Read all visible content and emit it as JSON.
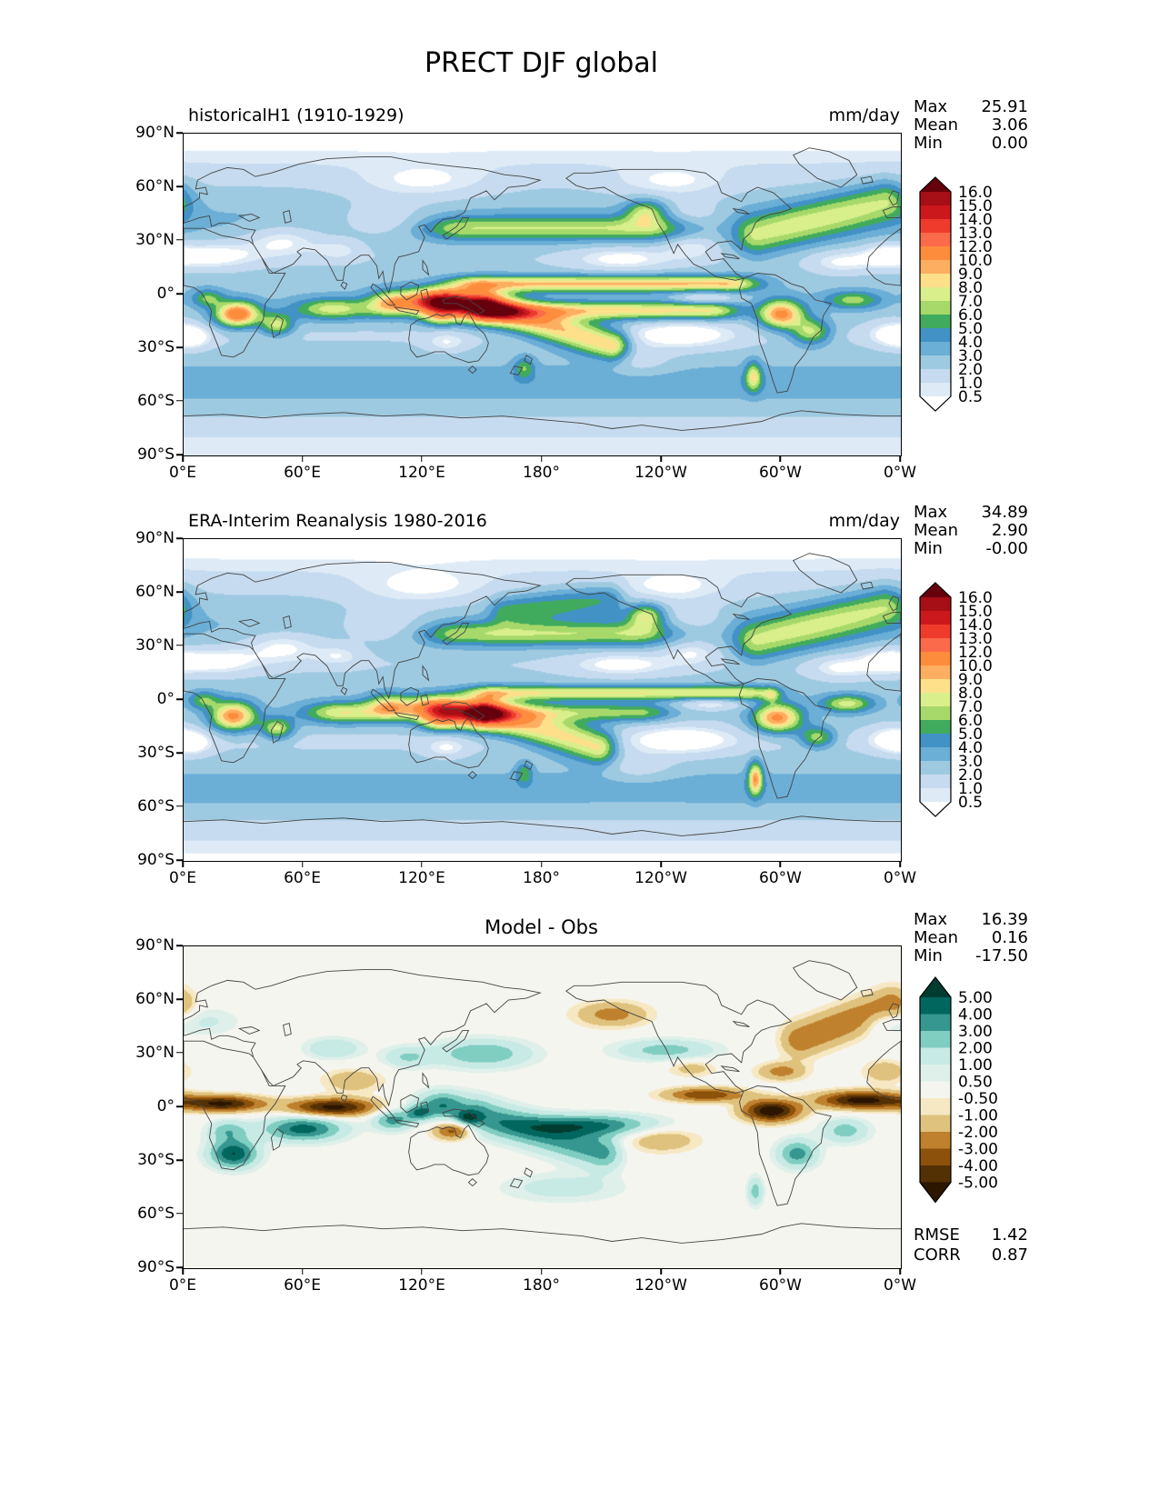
{
  "figure_title": "PRECT DJF global",
  "chart_data": [
    {
      "type": "heatmap",
      "title": "historicalH1 (1910-1929)",
      "units_label": "mm/day",
      "projection": "global lat-lon map, longitude 0°E to 360°E, latitude 90°S to 90°N",
      "stats": [
        {
          "label": "Max",
          "value": "25.91"
        },
        {
          "label": "Mean",
          "value": "3.06"
        },
        {
          "label": "Min",
          "value": "0.00"
        }
      ],
      "x_ticks": [
        "0°E",
        "60°E",
        "120°E",
        "180°",
        "120°W",
        "60°W",
        "0°W"
      ],
      "y_ticks": [
        "90°N",
        "60°N",
        "30°N",
        "0°",
        "30°S",
        "60°S",
        "90°S"
      ],
      "colorbar": {
        "tick_labels": [
          "16.0",
          "15.0",
          "14.0",
          "13.0",
          "12.0",
          "10.0",
          "9.0",
          "8.0",
          "7.0",
          "6.0",
          "5.0",
          "4.0",
          "3.0",
          "2.0",
          "1.0",
          "0.5"
        ],
        "levels_low_to_high": [
          0.5,
          1,
          2,
          3,
          4,
          5,
          6,
          7,
          8,
          9,
          10,
          12,
          13,
          14,
          15,
          16
        ],
        "colors_low_to_high": [
          "#ffffff",
          "#deebf7",
          "#c6dbef",
          "#9ecae1",
          "#6baed6",
          "#4292c6",
          "#41ab5d",
          "#a6d96a",
          "#d9ef8b",
          "#fee08b",
          "#fdae61",
          "#fd8d3c",
          "#fb6a4a",
          "#ef3b2c",
          "#cb181d",
          "#a50f15",
          "#67000d"
        ],
        "extend": "both"
      },
      "notes": "Model DJF precipitation climatology: heavy rain (>12 mm/day) over the Indo-Pacific warm pool, double ITCZ bands in the Pacific, SPCZ diagonal, Amazon/SACZ and Congo maxima, midlatitude storm tracks; dry subtropical highs, Sahara, interior Asia and polar caps near zero."
    },
    {
      "type": "heatmap",
      "title": "ERA-Interim Reanalysis 1980-2016",
      "units_label": "mm/day",
      "projection": "global lat-lon map, longitude 0°E to 360°E, latitude 90°S to 90°N",
      "stats": [
        {
          "label": "Max",
          "value": "34.89"
        },
        {
          "label": "Mean",
          "value": "2.90"
        },
        {
          "label": "Min",
          "value": "-0.00"
        }
      ],
      "x_ticks": [
        "0°E",
        "60°E",
        "120°E",
        "180°",
        "120°W",
        "60°W",
        "0°W"
      ],
      "y_ticks": [
        "90°N",
        "60°N",
        "30°N",
        "0°",
        "30°S",
        "60°S",
        "90°S"
      ],
      "colorbar": {
        "tick_labels": [
          "16.0",
          "15.0",
          "14.0",
          "13.0",
          "12.0",
          "10.0",
          "9.0",
          "8.0",
          "7.0",
          "6.0",
          "5.0",
          "4.0",
          "3.0",
          "2.0",
          "1.0",
          "0.5"
        ],
        "levels_low_to_high": [
          0.5,
          1,
          2,
          3,
          4,
          5,
          6,
          7,
          8,
          9,
          10,
          12,
          13,
          14,
          15,
          16
        ],
        "colors_low_to_high": [
          "#ffffff",
          "#deebf7",
          "#c6dbef",
          "#9ecae1",
          "#6baed6",
          "#4292c6",
          "#41ab5d",
          "#a6d96a",
          "#d9ef8b",
          "#fee08b",
          "#fdae61",
          "#fd8d3c",
          "#fb6a4a",
          "#ef3b2c",
          "#cb181d",
          "#a50f15",
          "#67000d"
        ],
        "extend": "both"
      },
      "notes": "Reanalysis DJF precipitation: single Pacific ITCZ, strong SPCZ, coastal Chile/Andes maxima, Amazon and Congo maxima, Aleutian and North Atlantic storm tracks."
    },
    {
      "type": "heatmap",
      "title": "Model - Obs",
      "units_label": "",
      "projection": "global lat-lon map, longitude 0°E to 360°E, latitude 90°S to 90°N",
      "stats": [
        {
          "label": "Max",
          "value": "16.39"
        },
        {
          "label": "Mean",
          "value": "0.16"
        },
        {
          "label": "Min",
          "value": "-17.50"
        }
      ],
      "extra_stats": [
        {
          "label": "RMSE",
          "value": "1.42"
        },
        {
          "label": "CORR",
          "value": "0.87"
        }
      ],
      "x_ticks": [
        "0°E",
        "60°E",
        "120°E",
        "180°",
        "120°W",
        "60°W",
        "0°W"
      ],
      "y_ticks": [
        "90°N",
        "60°N",
        "30°N",
        "0°",
        "30°S",
        "60°S",
        "90°S"
      ],
      "colorbar": {
        "tick_labels": [
          "5.00",
          "4.00",
          "3.00",
          "2.00",
          "1.00",
          "0.50",
          "-0.50",
          "-1.00",
          "-2.00",
          "-3.00",
          "-4.00",
          "-5.00"
        ],
        "levels_low_to_high": [
          -5,
          -4,
          -3,
          -2,
          -1,
          -0.5,
          0.5,
          1,
          2,
          3,
          4,
          5
        ],
        "colors_low_to_high": [
          "#2d1600",
          "#543005",
          "#8c510a",
          "#bf812d",
          "#dfc27d",
          "#f6e8c3",
          "#f5f5f0",
          "#dff0ea",
          "#c7eae5",
          "#80cdc1",
          "#35978f",
          "#01665e",
          "#003c30"
        ],
        "extend": "both"
      },
      "notes": "Model minus observations bias: dry (brown) band along the equatorial Atlantic, equatorial Africa, equatorial Indian Ocean and northern South America; wet (teal) biases over the subtropical south Indian Ocean, southern Africa, maritime continent and South Pacific (double-ITCZ bias)."
    }
  ]
}
